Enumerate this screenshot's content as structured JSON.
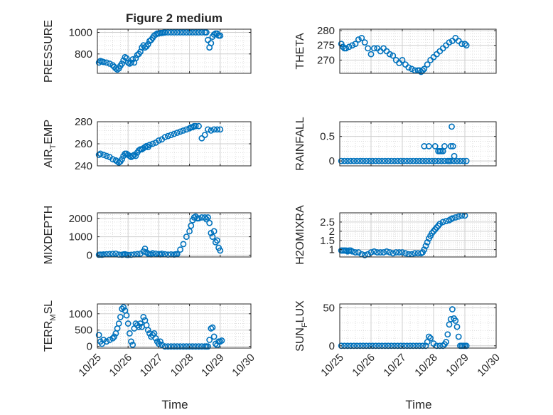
{
  "colors": {
    "marker": "#0072BD",
    "axis": "#262626",
    "grid": "#d9d9d9",
    "background": "#ffffff"
  },
  "chart_data": [
    {
      "type": "scatter",
      "title": "Figure 2 medium",
      "ylabel": "PRESSURE",
      "xlim": [
        0,
        5
      ],
      "ylim": [
        620,
        1030
      ],
      "yticks": [
        800,
        1000
      ],
      "yticklabels": [
        "800",
        "1000"
      ],
      "xticks": [
        0,
        1,
        2,
        3,
        4,
        5
      ],
      "xticklabels": [],
      "x": [
        0.05,
        0.1,
        0.15,
        0.2,
        0.3,
        0.4,
        0.5,
        0.55,
        0.6,
        0.65,
        0.7,
        0.75,
        0.8,
        0.85,
        0.9,
        0.95,
        1.0,
        1.05,
        1.1,
        1.15,
        1.2,
        1.25,
        1.3,
        1.35,
        1.4,
        1.45,
        1.5,
        1.55,
        1.6,
        1.65,
        1.7,
        1.75,
        1.8,
        1.85,
        1.9,
        1.95,
        2.0,
        2.05,
        2.1,
        2.15,
        2.2,
        2.3,
        2.4,
        2.5,
        2.6,
        2.7,
        2.8,
        2.9,
        3.0,
        3.1,
        3.2,
        3.3,
        3.4,
        3.5,
        3.55,
        3.6,
        3.65,
        3.7,
        3.75,
        3.8,
        3.85,
        3.9,
        3.95,
        4.0
      ],
      "y": [
        720,
        735,
        730,
        725,
        720,
        710,
        695,
        680,
        665,
        655,
        665,
        690,
        710,
        740,
        770,
        760,
        720,
        710,
        720,
        750,
        720,
        760,
        790,
        800,
        820,
        860,
        880,
        860,
        870,
        890,
        920,
        930,
        950,
        970,
        980,
        990,
        990,
        995,
        995,
        998,
        999,
        1000,
        1000,
        1000,
        1000,
        1000,
        1000,
        1000,
        1000,
        1000,
        1000,
        1000,
        1000,
        1000,
        1000,
        930,
        860,
        900,
        960,
        980,
        990,
        990,
        970,
        970
      ]
    },
    {
      "type": "scatter",
      "ylabel": "THETA",
      "xlim": [
        0,
        5
      ],
      "ylim": [
        265.5,
        280.5
      ],
      "yticks": [
        270,
        275,
        280
      ],
      "yticklabels": [
        "270",
        "275",
        "280"
      ],
      "xticks": [
        0,
        1,
        2,
        3,
        4,
        5
      ],
      "xticklabels": [],
      "x": [
        0.05,
        0.1,
        0.15,
        0.2,
        0.3,
        0.4,
        0.5,
        0.6,
        0.7,
        0.8,
        0.9,
        1.0,
        1.1,
        1.2,
        1.3,
        1.4,
        1.5,
        1.6,
        1.7,
        1.8,
        1.9,
        2.0,
        2.1,
        2.2,
        2.3,
        2.4,
        2.5,
        2.55,
        2.6,
        2.65,
        2.7,
        2.8,
        2.9,
        3.0,
        3.1,
        3.2,
        3.3,
        3.4,
        3.5,
        3.6,
        3.7,
        3.8,
        3.9,
        4.0,
        4.05
      ],
      "y": [
        275.5,
        274.5,
        274,
        274,
        274.5,
        275,
        275.5,
        277,
        277.5,
        276,
        274,
        272,
        274,
        274,
        273,
        274,
        273,
        272,
        271.5,
        270,
        269,
        270,
        268.5,
        267.5,
        267,
        266.5,
        266.5,
        266.5,
        266,
        266.5,
        267,
        268.5,
        270,
        271,
        272,
        273,
        274,
        275,
        276,
        276.5,
        277.5,
        276.5,
        275.5,
        275.5,
        275
      ]
    },
    {
      "type": "scatter",
      "ylabel": "AIR_TEMP",
      "xlim": [
        0,
        5
      ],
      "ylim": [
        240,
        280
      ],
      "yticks": [
        240,
        260,
        280
      ],
      "yticklabels": [
        "240",
        "260",
        "280"
      ],
      "xticks": [
        0,
        1,
        2,
        3,
        4,
        5
      ],
      "xticklabels": [],
      "x": [
        0.05,
        0.1,
        0.2,
        0.3,
        0.4,
        0.5,
        0.6,
        0.65,
        0.7,
        0.75,
        0.8,
        0.85,
        0.9,
        0.95,
        1.0,
        1.05,
        1.1,
        1.15,
        1.2,
        1.25,
        1.3,
        1.35,
        1.4,
        1.45,
        1.5,
        1.55,
        1.6,
        1.65,
        1.7,
        1.8,
        1.9,
        2.0,
        2.1,
        2.2,
        2.3,
        2.4,
        2.5,
        2.6,
        2.7,
        2.8,
        2.9,
        3.0,
        3.05,
        3.1,
        3.15,
        3.2,
        3.3,
        3.4,
        3.5,
        3.6,
        3.7,
        3.8,
        3.9,
        4.0
      ],
      "y": [
        250,
        251,
        250,
        249,
        248,
        246,
        245,
        244,
        243,
        244,
        246,
        249,
        251,
        251,
        250,
        249,
        248,
        249,
        250,
        249,
        252,
        254,
        255,
        255,
        256,
        257,
        258,
        257,
        259,
        260,
        261,
        263,
        264,
        266,
        267,
        268,
        269,
        270,
        271,
        272,
        273,
        274,
        275,
        275,
        276,
        276,
        276,
        265,
        268,
        273,
        272,
        273,
        273,
        273
      ]
    },
    {
      "type": "scatter",
      "ylabel": "RAINFALL",
      "xlim": [
        0,
        5
      ],
      "ylim": [
        -0.1,
        0.8
      ],
      "yticks": [
        0,
        0.5
      ],
      "yticklabels": [
        "0",
        "0.5"
      ],
      "xticks": [
        0,
        1,
        2,
        3,
        4,
        5
      ],
      "xticklabels": [],
      "x": [
        0.05,
        0.15,
        0.25,
        0.35,
        0.45,
        0.55,
        0.65,
        0.75,
        0.85,
        0.95,
        1.05,
        1.15,
        1.25,
        1.35,
        1.45,
        1.55,
        1.65,
        1.75,
        1.85,
        1.95,
        2.05,
        2.15,
        2.25,
        2.35,
        2.45,
        2.55,
        2.65,
        2.75,
        2.85,
        2.95,
        3.05,
        3.15,
        3.25,
        3.35,
        3.45,
        3.55,
        3.65,
        3.75,
        3.85,
        3.95,
        4.05,
        2.7,
        2.85,
        3.05,
        3.15,
        3.2,
        3.25,
        3.3,
        3.35,
        3.5,
        3.55,
        3.58,
        3.62,
        3.66
      ],
      "y": [
        0,
        0,
        0,
        0,
        0,
        0,
        0,
        0,
        0,
        0,
        0,
        0,
        0,
        0,
        0,
        0,
        0,
        0,
        0,
        0,
        0,
        0,
        0,
        0,
        0,
        0,
        0,
        0,
        0,
        0,
        0,
        0,
        0,
        0,
        0,
        0,
        0,
        0,
        0,
        0,
        0,
        0.3,
        0.3,
        0.3,
        0.2,
        0.2,
        0.2,
        0.2,
        0.3,
        0,
        0.3,
        0.7,
        0.3,
        0.1
      ]
    },
    {
      "type": "scatter",
      "ylabel": "MIXDEPTH",
      "xlim": [
        0,
        5
      ],
      "ylim": [
        -100,
        2300
      ],
      "yticks": [
        0,
        1000,
        2000
      ],
      "yticklabels": [
        "0",
        "1000",
        "2000"
      ],
      "xticks": [
        0,
        1,
        2,
        3,
        4,
        5
      ],
      "xticklabels": [],
      "x": [
        0.05,
        0.1,
        0.15,
        0.2,
        0.3,
        0.4,
        0.5,
        0.6,
        0.7,
        0.8,
        0.85,
        0.9,
        0.95,
        1.0,
        1.1,
        1.2,
        1.3,
        1.4,
        1.5,
        1.55,
        1.6,
        1.65,
        1.7,
        1.75,
        1.8,
        1.9,
        2.0,
        2.05,
        2.1,
        2.2,
        2.3,
        2.4,
        2.5,
        2.55,
        2.6,
        2.7,
        2.8,
        2.9,
        3.0,
        3.05,
        3.1,
        3.15,
        3.2,
        3.25,
        3.3,
        3.4,
        3.5,
        3.55,
        3.6,
        3.65,
        3.7,
        3.75,
        3.8,
        3.85,
        3.9,
        3.95,
        4.0
      ],
      "y": [
        20,
        30,
        20,
        40,
        50,
        60,
        70,
        80,
        30,
        20,
        40,
        50,
        20,
        10,
        20,
        40,
        60,
        80,
        200,
        350,
        150,
        80,
        60,
        40,
        100,
        80,
        60,
        40,
        80,
        50,
        30,
        40,
        30,
        50,
        60,
        300,
        600,
        1000,
        1300,
        1600,
        1900,
        2050,
        2100,
        2000,
        2000,
        2050,
        2050,
        1950,
        2050,
        1750,
        1200,
        1000,
        1300,
        700,
        800,
        400,
        250
      ]
    },
    {
      "type": "scatter",
      "ylabel": "H2OMIXRA",
      "xlim": [
        0,
        5
      ],
      "ylim": [
        0.6,
        3.0
      ],
      "yticks": [
        1,
        1.5,
        2,
        2.5
      ],
      "yticklabels": [
        "1",
        "1.5",
        "2",
        "2.5"
      ],
      "xticks": [
        0,
        1,
        2,
        3,
        4,
        5
      ],
      "xticklabels": [],
      "x": [
        0.05,
        0.1,
        0.15,
        0.2,
        0.25,
        0.3,
        0.35,
        0.4,
        0.5,
        0.6,
        0.7,
        0.8,
        0.9,
        1.0,
        1.1,
        1.2,
        1.3,
        1.4,
        1.5,
        1.6,
        1.7,
        1.8,
        1.9,
        2.0,
        2.1,
        2.2,
        2.3,
        2.4,
        2.5,
        2.6,
        2.65,
        2.7,
        2.75,
        2.8,
        2.85,
        2.9,
        2.95,
        3.0,
        3.05,
        3.1,
        3.15,
        3.2,
        3.3,
        3.4,
        3.5,
        3.55,
        3.6,
        3.7,
        3.8,
        3.9,
        4.0
      ],
      "y": [
        0.95,
        0.95,
        0.95,
        0.95,
        0.9,
        0.95,
        0.95,
        0.9,
        0.85,
        0.85,
        0.75,
        0.7,
        0.75,
        0.85,
        0.9,
        0.85,
        0.85,
        0.85,
        0.9,
        0.85,
        0.8,
        0.85,
        0.85,
        0.85,
        0.8,
        0.75,
        0.75,
        0.8,
        0.8,
        0.8,
        0.85,
        1.0,
        1.2,
        1.4,
        1.6,
        1.75,
        1.9,
        2.0,
        2.1,
        2.2,
        2.3,
        2.4,
        2.5,
        2.55,
        2.6,
        2.65,
        2.7,
        2.75,
        2.8,
        2.85,
        2.85
      ]
    },
    {
      "type": "scatter",
      "ylabel": "TERR_MSL",
      "xlim": [
        0,
        5
      ],
      "ylim": [
        -50,
        1300
      ],
      "yticks": [
        0,
        500,
        1000
      ],
      "yticklabels": [
        "0",
        "500",
        "1000"
      ],
      "xticks": [
        0,
        1,
        2,
        3,
        4,
        5
      ],
      "xticklabels": [
        "10/25",
        "10/26",
        "10/27",
        "10/28",
        "10/29",
        "10/30"
      ],
      "x": [
        0.05,
        0.1,
        0.15,
        0.2,
        0.3,
        0.4,
        0.5,
        0.55,
        0.6,
        0.65,
        0.7,
        0.75,
        0.8,
        0.85,
        0.9,
        0.95,
        1.0,
        1.05,
        1.1,
        1.15,
        1.2,
        1.25,
        1.3,
        1.35,
        1.4,
        1.45,
        1.5,
        1.55,
        1.6,
        1.65,
        1.7,
        1.75,
        1.8,
        1.85,
        1.9,
        1.95,
        2.0,
        2.05,
        2.1,
        2.2,
        2.3,
        2.4,
        2.5,
        2.6,
        2.7,
        2.8,
        2.9,
        3.0,
        3.1,
        3.2,
        3.3,
        3.4,
        3.5,
        3.55,
        3.6,
        3.65,
        3.7,
        3.75,
        3.8,
        3.85,
        3.9,
        3.95,
        4.0,
        4.05
      ],
      "y": [
        350,
        150,
        80,
        200,
        150,
        200,
        250,
        300,
        400,
        550,
        700,
        900,
        1150,
        1200,
        1100,
        950,
        700,
        400,
        150,
        50,
        550,
        700,
        650,
        600,
        700,
        600,
        900,
        800,
        650,
        500,
        400,
        300,
        350,
        400,
        250,
        150,
        80,
        150,
        50,
        0,
        0,
        0,
        0,
        0,
        0,
        0,
        0,
        0,
        0,
        0,
        0,
        0,
        0,
        0,
        0,
        200,
        550,
        580,
        300,
        80,
        40,
        150,
        150,
        180
      ]
    },
    {
      "type": "scatter",
      "ylabel": "SUN_FLUX",
      "xlim": [
        0,
        5
      ],
      "ylim": [
        -3,
        55
      ],
      "yticks": [
        0,
        50
      ],
      "yticklabels": [
        "0",
        "50"
      ],
      "xticks": [
        0,
        1,
        2,
        3,
        4,
        5
      ],
      "xticklabels": [
        "10/25",
        "10/26",
        "10/27",
        "10/28",
        "10/29",
        "10/30"
      ],
      "x": [
        0.05,
        0.15,
        0.25,
        0.35,
        0.45,
        0.55,
        0.65,
        0.75,
        0.85,
        0.95,
        1.05,
        1.15,
        1.25,
        1.35,
        1.45,
        1.55,
        1.65,
        1.75,
        1.85,
        1.95,
        2.05,
        2.15,
        2.25,
        2.35,
        2.45,
        2.55,
        2.65,
        2.75,
        2.8,
        2.85,
        2.9,
        3.0,
        3.1,
        3.2,
        3.3,
        3.35,
        3.4,
        3.45,
        3.5,
        3.55,
        3.6,
        3.65,
        3.7,
        3.75,
        3.8,
        3.85,
        3.9,
        3.95,
        4.0,
        4.05
      ],
      "y": [
        0,
        0,
        0,
        0,
        0,
        0,
        0,
        0,
        0,
        0,
        0,
        0,
        0,
        0,
        0,
        0,
        0,
        0,
        0,
        0,
        0,
        0,
        0,
        0,
        0,
        0,
        0,
        0,
        5,
        12,
        10,
        3,
        0,
        0,
        0,
        2,
        5,
        15,
        28,
        35,
        48,
        36,
        33,
        25,
        12,
        0,
        0,
        0,
        0,
        0
      ]
    }
  ],
  "xlabels": [
    "Time",
    "Time"
  ],
  "labels": {
    "title": "Figure 2 medium",
    "y": [
      {
        "main": "PRESSURE"
      },
      {
        "main": "THETA"
      },
      {
        "main": "AIR",
        "sub": "T",
        "rest": "EMP"
      },
      {
        "main": "RAINFALL"
      },
      {
        "main": "MIXDEPTH"
      },
      {
        "main": "H2OMIXRA"
      },
      {
        "main": "TERR",
        "sub": "M",
        "rest": "SL"
      },
      {
        "main": "SUN",
        "sub": "F",
        "rest": "LUX"
      }
    ]
  }
}
